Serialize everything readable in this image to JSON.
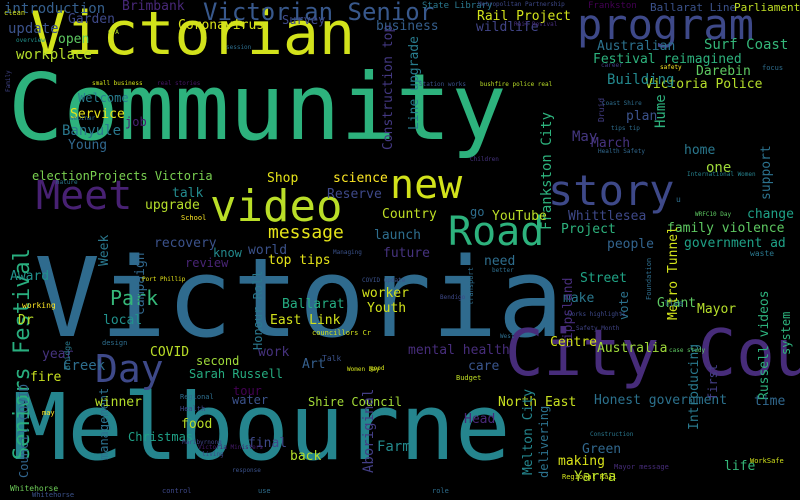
{
  "words": [
    {
      "text": "Melbourne",
      "color": "#25858e"
    },
    {
      "text": "Victoria",
      "color": "#2f6b8e"
    },
    {
      "text": "Community",
      "color": "#2db27d"
    },
    {
      "text": "Victorian",
      "color": "#d2e21b"
    },
    {
      "text": "City Council",
      "color": "#472c7a"
    },
    {
      "text": "program",
      "color": "#3e4989"
    },
    {
      "text": "story",
      "color": "#3e4989"
    },
    {
      "text": "Road",
      "color": "#2db27d"
    },
    {
      "text": "video",
      "color": "#bade28"
    },
    {
      "text": "Meet",
      "color": "#482173"
    },
    {
      "text": "new",
      "color": "#d2e21b"
    },
    {
      "text": "Day",
      "color": "#3e4989"
    },
    {
      "text": "Victorian Senior",
      "color": "#38588c"
    },
    {
      "text": "Seniors Festival",
      "color": "#29af7f"
    },
    {
      "text": "Park",
      "color": "#35b779"
    },
    {
      "text": "message",
      "color": "#e5e419"
    },
    {
      "text": "Festival reimagined",
      "color": "#2db27d"
    },
    {
      "text": "Victoria Police",
      "color": "#b5de2b"
    },
    {
      "text": "Surf Coast",
      "color": "#34b679"
    },
    {
      "text": "Rail Project",
      "color": "#d2e21b"
    },
    {
      "text": "Coronavirus",
      "color": "#d8e219"
    },
    {
      "text": "Australian",
      "color": "#2c728e"
    },
    {
      "text": "Building",
      "color": "#23898e"
    },
    {
      "text": "Darebin",
      "color": "#5ec962"
    },
    {
      "text": "Frankston City",
      "color": "#2db27d"
    },
    {
      "text": "Line upgrade",
      "color": "#287c8e"
    },
    {
      "text": "Construction top",
      "color": "#443983"
    },
    {
      "text": "Banyule",
      "color": "#2a788e"
    },
    {
      "text": "Service",
      "color": "#e5e419"
    },
    {
      "text": "Welcome",
      "color": "#287c8e"
    },
    {
      "text": "electionProjects Victoria",
      "color": "#7ad151"
    },
    {
      "text": "workplace",
      "color": "#b5de2b"
    },
    {
      "text": "update",
      "color": "#3b528b"
    },
    {
      "text": "open",
      "color": "#5ec962"
    },
    {
      "text": "introduction",
      "color": "#355f8d"
    },
    {
      "text": "Brimbank",
      "color": "#482878"
    },
    {
      "text": "Garden",
      "color": "#3e4989"
    },
    {
      "text": "Survey",
      "color": "#3e4989"
    },
    {
      "text": "business",
      "color": "#355f8d"
    },
    {
      "text": "wildlife",
      "color": "#414487"
    },
    {
      "text": "State Library",
      "color": "#2a788e"
    },
    {
      "text": "Ballarat Line",
      "color": "#3b528b"
    },
    {
      "text": "Frankston",
      "color": "#440154"
    },
    {
      "text": "Parliament",
      "color": "#c0df25"
    },
    {
      "text": "Metropolitan Partnership",
      "color": "#3e4989"
    },
    {
      "text": "plan",
      "color": "#3b528b"
    },
    {
      "text": "March",
      "color": "#46337f"
    },
    {
      "text": "May",
      "color": "#453781"
    },
    {
      "text": "Hume",
      "color": "#2db27d"
    },
    {
      "text": "home",
      "color": "#2a788e"
    },
    {
      "text": "one",
      "color": "#9fda3a"
    },
    {
      "text": "support",
      "color": "#2c728e"
    },
    {
      "text": "change",
      "color": "#1fa187"
    },
    {
      "text": "government ad",
      "color": "#1fa187"
    },
    {
      "text": "family violence",
      "color": "#5ec962"
    },
    {
      "text": "Whittlesea",
      "color": "#3e4989"
    },
    {
      "text": "YouTube",
      "color": "#bade28"
    },
    {
      "text": "go",
      "color": "#2e6e8e"
    },
    {
      "text": "Project",
      "color": "#2db27d"
    },
    {
      "text": "people",
      "color": "#32648e"
    },
    {
      "text": "Country",
      "color": "#c0df25"
    },
    {
      "text": "launch",
      "color": "#2e6e8e"
    },
    {
      "text": "future",
      "color": "#46337f"
    },
    {
      "text": "science",
      "color": "#fde725"
    },
    {
      "text": "Reserve",
      "color": "#3e4989"
    },
    {
      "text": "Shop",
      "color": "#e5e419"
    },
    {
      "text": "talk",
      "color": "#238a8d"
    },
    {
      "text": "upgrade",
      "color": "#b5de2b"
    },
    {
      "text": "recovery",
      "color": "#3b528b"
    },
    {
      "text": "world",
      "color": "#3b528b"
    },
    {
      "text": "know",
      "color": "#238a8d"
    },
    {
      "text": "review",
      "color": "#482475"
    },
    {
      "text": "top tips",
      "color": "#e5e419"
    },
    {
      "text": "Ballarat",
      "color": "#25ac82"
    },
    {
      "text": "East Link",
      "color": "#d2e21b"
    },
    {
      "text": "Honour Roll",
      "color": "#2a788e"
    },
    {
      "text": "worker",
      "color": "#d2e21b"
    },
    {
      "text": "Youth",
      "color": "#d2e21b"
    },
    {
      "text": "need",
      "color": "#2e6e8e"
    },
    {
      "text": "Street",
      "color": "#20a486"
    },
    {
      "text": "make",
      "color": "#2a788e"
    },
    {
      "text": "Gippsland",
      "color": "#472d7b"
    },
    {
      "text": "Centre",
      "color": "#d2e21b"
    },
    {
      "text": "Grant",
      "color": "#5ec962"
    },
    {
      "text": "Mayor",
      "color": "#b5de2b"
    },
    {
      "text": "Metro Tunnel",
      "color": "#d2e21b"
    },
    {
      "text": "vote",
      "color": "#2c728e"
    },
    {
      "text": "Australia",
      "color": "#9fda3a"
    },
    {
      "text": "mental health",
      "color": "#472d7b"
    },
    {
      "text": "care",
      "color": "#39558c"
    },
    {
      "text": "work",
      "color": "#46327e"
    },
    {
      "text": "Art",
      "color": "#355f8d"
    },
    {
      "text": "second",
      "color": "#9fda3a"
    },
    {
      "text": "Sarah Russell",
      "color": "#26ad81"
    },
    {
      "text": "COVID",
      "color": "#bade28"
    },
    {
      "text": "tour",
      "color": "#440154"
    },
    {
      "text": "Creek",
      "color": "#2e6e8e"
    },
    {
      "text": "year",
      "color": "#46337f"
    },
    {
      "text": "fire",
      "color": "#c8e020"
    },
    {
      "text": "local",
      "color": "#21918c"
    },
    {
      "text": "Dr",
      "color": "#bade28"
    },
    {
      "text": "Award",
      "color": "#21918c"
    },
    {
      "text": "Week",
      "color": "#2a788e"
    },
    {
      "text": "campaign",
      "color": "#31688e"
    },
    {
      "text": "job",
      "color": "#482071"
    },
    {
      "text": "Young",
      "color": "#31688e"
    },
    {
      "text": "North East",
      "color": "#c8e020"
    },
    {
      "text": "Honest government",
      "color": "#2c728e"
    },
    {
      "text": "Head",
      "color": "#482878"
    },
    {
      "text": "Green",
      "color": "#31688e"
    },
    {
      "text": "making",
      "color": "#d8e219"
    },
    {
      "text": "Yarra",
      "color": "#b5de2b"
    },
    {
      "text": "Introducing",
      "color": "#29798e"
    },
    {
      "text": "first",
      "color": "#433e85"
    },
    {
      "text": "Russell videos",
      "color": "#2db27d"
    },
    {
      "text": "system",
      "color": "#2db27d"
    },
    {
      "text": "time",
      "color": "#31688e"
    },
    {
      "text": "life",
      "color": "#35b779"
    },
    {
      "text": "Shire Council",
      "color": "#a2da37"
    },
    {
      "text": "water",
      "color": "#3b528b"
    },
    {
      "text": "food",
      "color": "#bade28"
    },
    {
      "text": "final",
      "color": "#3e4989"
    },
    {
      "text": "back",
      "color": "#b5de2b"
    },
    {
      "text": "Farm",
      "color": "#238a8d"
    },
    {
      "text": "Aboriginal",
      "color": "#433e85"
    },
    {
      "text": "Melton City",
      "color": "#24868e"
    },
    {
      "text": "delivering",
      "color": "#2c728e"
    },
    {
      "text": "Christmas",
      "color": "#1fa187"
    },
    {
      "text": "management",
      "color": "#2c728e"
    },
    {
      "text": "winner",
      "color": "#b5de2b"
    },
    {
      "text": "Council COVID",
      "color": "#32658e"
    },
    {
      "text": "Victoria Ministers",
      "color": "#481c6e"
    },
    {
      "text": "Maribyrnong",
      "color": "#404688"
    },
    {
      "text": "Whitehorse",
      "color": "#6ece58"
    },
    {
      "text": "Bridge",
      "color": "#297a8e"
    },
    {
      "text": "Port Phillip",
      "color": "#e5e419"
    },
    {
      "text": "councillors Cr",
      "color": "#d2e21b"
    },
    {
      "text": "COVID update",
      "color": "#3b528b"
    },
    {
      "text": "Bendigo",
      "color": "#3e4989"
    },
    {
      "text": "works highlights",
      "color": "#3e4989"
    },
    {
      "text": "Safety Month",
      "color": "#414487"
    },
    {
      "text": "case study",
      "color": "#5ec962"
    },
    {
      "text": "Budget",
      "color": "#c0df25"
    },
    {
      "text": "Women Day",
      "color": "#d2e21b"
    },
    {
      "text": "International Women",
      "color": "#26828e"
    },
    {
      "text": "WRFC10 Day",
      "color": "#5ec962"
    },
    {
      "text": "small business",
      "color": "#d2e21b"
    },
    {
      "text": "real stories",
      "color": "#481668"
    },
    {
      "text": "Station works",
      "color": "#3b528b"
    },
    {
      "text": "bushfire police real",
      "color": "#bade28"
    },
    {
      "text": "Coast Shire",
      "color": "#2e6e8e"
    },
    {
      "text": "tips tip",
      "color": "#2e6e8e"
    },
    {
      "text": "Health Safety",
      "color": "#31688e"
    },
    {
      "text": "Children",
      "color": "#46337f"
    },
    {
      "text": "webinar",
      "color": "#2e6e8e"
    },
    {
      "text": "School",
      "color": "#fde725"
    },
    {
      "text": "nature",
      "color": "#2a788e"
    },
    {
      "text": "Family",
      "color": "#414487"
    },
    {
      "text": "overview",
      "color": "#21918c"
    },
    {
      "text": "session",
      "color": "#2e6e8e"
    },
    {
      "text": "career",
      "color": "#433e85"
    },
    {
      "text": "safety",
      "color": "#fde725"
    },
    {
      "text": "focus",
      "color": "#2e6e8e"
    },
    {
      "text": "CFA",
      "color": "#b5de2b"
    },
    {
      "text": "clean",
      "color": "#d2e21b"
    },
    {
      "text": "Rail Revival",
      "color": "#472d7b"
    },
    {
      "text": "Druid",
      "color": "#433e85"
    },
    {
      "text": "better",
      "color": "#2e6e8e"
    },
    {
      "text": "West",
      "color": "#2e6e8e"
    },
    {
      "text": "transport",
      "color": "#2e6e8e"
    },
    {
      "text": "Managing",
      "color": "#3b528b"
    },
    {
      "text": "good",
      "color": "#d2e21b"
    },
    {
      "text": "Regional Rail",
      "color": "#d2e21b"
    },
    {
      "text": "Construction",
      "color": "#2a788e"
    },
    {
      "text": "Mayor message",
      "color": "#472d7b"
    },
    {
      "text": "WorkSafe",
      "color": "#d2e21b"
    },
    {
      "text": "Whitehorse",
      "color": "#3b528b"
    },
    {
      "text": "control",
      "color": "#3e4989"
    },
    {
      "text": "use",
      "color": "#2e6e8e"
    },
    {
      "text": "role",
      "color": "#2e6e8e"
    },
    {
      "text": "living",
      "color": "#3e4989"
    },
    {
      "text": "response",
      "color": "#3b528b"
    },
    {
      "text": "design",
      "color": "#2e6e8e"
    },
    {
      "text": "Regional",
      "color": "#2e6e8e"
    },
    {
      "text": "Health",
      "color": "#3e4989"
    },
    {
      "text": "may",
      "color": "#fde725"
    },
    {
      "text": "working",
      "color": "#fde725"
    },
    {
      "text": "Talk",
      "color": "#3b528b"
    },
    {
      "text": "waste",
      "color": "#2a788e"
    },
    {
      "text": "live",
      "color": "#2e6e8e"
    },
    {
      "text": "u",
      "color": "#2e6e8e"
    },
    {
      "text": "Foundation",
      "color": "#2e6e8e"
    }
  ]
}
